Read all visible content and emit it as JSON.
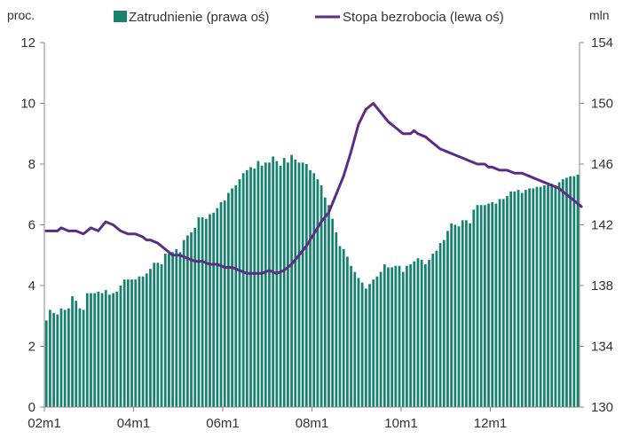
{
  "chart_data": {
    "type": "bar",
    "left_axis": {
      "unit_label": "proc.",
      "range": [
        0,
        12
      ],
      "ticks": [
        "0",
        "2",
        "4",
        "6",
        "8",
        "10",
        "12"
      ]
    },
    "right_axis": {
      "unit_label": "mln",
      "range": [
        130,
        154
      ],
      "ticks": [
        "130",
        "134",
        "138",
        "142",
        "146",
        "150",
        "154"
      ]
    },
    "x_ticks": [
      "02m1",
      "04m1",
      "06m1",
      "08m1",
      "10m1",
      "12m1"
    ],
    "grid": false,
    "legend_position": "top",
    "colors": {
      "bars": "#17826F",
      "line": "#5C2D82",
      "axis": "#888888"
    },
    "series": [
      {
        "name": "Zatrudnienie (prawa oś)",
        "axis": "right",
        "kind": "bar",
        "x": [
          "02m1",
          "02m2",
          "02m3",
          "02m4",
          "02m5",
          "02m6",
          "02m7",
          "02m8",
          "02m9",
          "02m10",
          "02m11",
          "02m12",
          "03m1",
          "03m2",
          "03m3",
          "03m4",
          "03m5",
          "03m6",
          "03m7",
          "03m8",
          "03m9",
          "03m10",
          "03m11",
          "03m12",
          "04m1",
          "04m2",
          "04m3",
          "04m4",
          "04m5",
          "04m6",
          "04m7",
          "04m8",
          "04m9",
          "04m10",
          "04m11",
          "04m12",
          "05m1",
          "05m2",
          "05m3",
          "05m4",
          "05m5",
          "05m6",
          "05m7",
          "05m8",
          "05m9",
          "05m10",
          "05m11",
          "05m12",
          "06m1",
          "06m2",
          "06m3",
          "06m4",
          "06m5",
          "06m6",
          "06m7",
          "06m8",
          "06m9",
          "06m10",
          "06m11",
          "06m12",
          "07m1",
          "07m2",
          "07m3",
          "07m4",
          "07m5",
          "07m6",
          "07m7",
          "07m8",
          "07m9",
          "07m10",
          "07m11",
          "07m12",
          "08m1",
          "08m2",
          "08m3",
          "08m4",
          "08m5",
          "08m6",
          "08m7",
          "08m8",
          "08m9",
          "08m10",
          "08m11",
          "08m12",
          "09m1",
          "09m2",
          "09m3",
          "09m4",
          "09m5",
          "09m6",
          "09m7",
          "09m8",
          "09m9",
          "09m10",
          "09m11",
          "09m12",
          "10m1",
          "10m2",
          "10m3",
          "10m4",
          "10m5",
          "10m6",
          "10m7",
          "10m8",
          "10m9",
          "10m10",
          "10m11",
          "10m12",
          "11m1",
          "11m2",
          "11m3",
          "11m4",
          "11m5",
          "11m6",
          "11m7",
          "11m8",
          "11m9",
          "11m10",
          "11m11",
          "11m12",
          "12m1",
          "12m2",
          "12m3",
          "12m4",
          "12m5",
          "12m6",
          "12m7",
          "12m8",
          "12m9",
          "12m10",
          "12m11",
          "12m12",
          "13m1",
          "13m2",
          "13m3",
          "13m4",
          "13m5",
          "13m6",
          "13m7",
          "13m8",
          "13m9",
          "13m10",
          "13m11",
          "13m12"
        ],
        "values": [
          135.7,
          136.4,
          136.2,
          136.1,
          136.5,
          136.4,
          136.5,
          137.3,
          137.0,
          136.5,
          136.4,
          137.5,
          137.5,
          137.5,
          137.6,
          137.5,
          137.7,
          137.4,
          137.5,
          137.6,
          138.0,
          138.4,
          138.4,
          138.4,
          138.4,
          138.6,
          138.6,
          138.8,
          139.1,
          139.5,
          139.5,
          139.4,
          140.1,
          140.1,
          140.2,
          140.4,
          140.2,
          141.0,
          141.3,
          141.5,
          141.8,
          142.5,
          142.5,
          142.4,
          142.7,
          142.8,
          143.1,
          143.5,
          143.6,
          144.1,
          144.4,
          144.6,
          145.0,
          145.4,
          145.6,
          145.8,
          145.7,
          146.2,
          145.9,
          146.1,
          146.1,
          146.5,
          146.2,
          145.9,
          146.4,
          146.1,
          146.6,
          146.3,
          146.1,
          146.1,
          146.0,
          145.6,
          145.4,
          145.0,
          144.6,
          143.8,
          143.3,
          142.4,
          141.5,
          140.6,
          140.4,
          139.9,
          139.3,
          138.9,
          138.5,
          138.2,
          137.8,
          138.1,
          138.4,
          138.6,
          138.9,
          139.4,
          139.2,
          139.2,
          139.3,
          139.3,
          138.9,
          139.3,
          139.4,
          139.6,
          139.8,
          139.7,
          139.4,
          139.7,
          140.1,
          140.3,
          140.8,
          141.0,
          141.6,
          142.1,
          142.0,
          141.9,
          142.3,
          142.3,
          142.1,
          143.0,
          143.3,
          143.3,
          143.3,
          143.4,
          143.5,
          143.4,
          143.7,
          143.7,
          143.9,
          144.2,
          144.2,
          144.3,
          144.1,
          144.3,
          144.4,
          144.4,
          144.5,
          144.5,
          144.6,
          144.6,
          144.7,
          144.6,
          144.8,
          145.0,
          145.1,
          145.2,
          145.2,
          145.3
        ]
      },
      {
        "name": "Stopa bezrobocia (lewa oś)",
        "axis": "left",
        "kind": "line",
        "x_months_from_02m1": [
          0,
          3,
          4,
          6,
          8,
          10,
          12,
          14,
          16,
          18,
          20,
          22,
          24,
          26,
          27,
          28,
          30,
          32,
          33,
          34,
          36,
          38,
          40,
          42,
          44,
          46,
          48,
          50,
          52,
          54,
          56,
          58,
          60,
          62,
          64,
          66,
          68,
          70,
          72,
          74,
          76,
          78,
          80,
          82,
          84,
          86,
          88,
          90,
          92,
          94,
          96,
          98,
          99,
          100,
          102,
          104,
          106,
          108,
          110,
          112,
          114,
          116,
          118,
          119,
          120,
          122,
          124,
          126,
          128,
          130,
          132,
          134,
          136,
          138,
          140,
          142,
          144
        ],
        "values": [
          5.8,
          5.8,
          5.9,
          5.8,
          5.8,
          5.7,
          5.9,
          5.8,
          6.1,
          6.0,
          5.8,
          5.7,
          5.7,
          5.6,
          5.5,
          5.5,
          5.4,
          5.2,
          5.1,
          5.0,
          5.0,
          4.9,
          4.8,
          4.8,
          4.7,
          4.7,
          4.6,
          4.6,
          4.5,
          4.4,
          4.4,
          4.4,
          4.5,
          4.4,
          4.5,
          4.7,
          5.0,
          5.3,
          5.7,
          6.1,
          6.4,
          7.0,
          7.6,
          8.4,
          9.3,
          9.8,
          10.0,
          9.7,
          9.4,
          9.2,
          9.0,
          9.0,
          9.1,
          9.0,
          8.9,
          8.7,
          8.5,
          8.4,
          8.3,
          8.2,
          8.1,
          8.0,
          8.0,
          7.9,
          7.9,
          7.8,
          7.8,
          7.7,
          7.7,
          7.6,
          7.5,
          7.4,
          7.3,
          7.2,
          7.0,
          6.8,
          6.6
        ]
      }
    ],
    "legend": {
      "bars_label": "Zatrudnienie (prawa oś)",
      "line_label": "Stopa bezrobocia (lewa oś)"
    }
  }
}
